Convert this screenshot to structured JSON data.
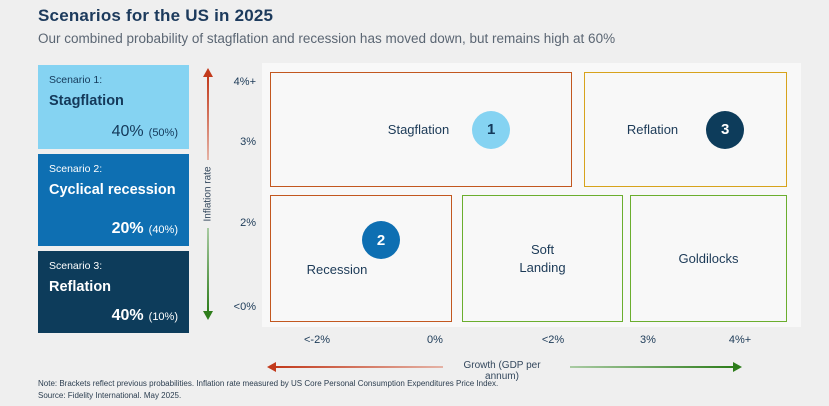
{
  "header": {
    "title": "Scenarios for the US in 2025",
    "subtitle": "Our combined probability of stagflation and recession has moved down, but remains high at 60%"
  },
  "scenarios": [
    {
      "label": "Scenario 1:",
      "name": "Stagflation",
      "current": "40%",
      "previous": "(50%)"
    },
    {
      "label": "Scenario 2:",
      "name": "Cyclical recession",
      "current": "20%",
      "previous": "(40%)"
    },
    {
      "label": "Scenario 3:",
      "name": "Reflation",
      "current": "40%",
      "previous": "(10%)"
    }
  ],
  "chart_data": {
    "type": "scatter",
    "title": "Scenarios for the US in 2025",
    "subtitle": "Our combined probability of stagflation and recession has moved down, but remains high at 60%",
    "xlabel": "Growth (GDP per annum)",
    "ylabel": "Inflation rate",
    "x_tick_labels": [
      "<-2%",
      "0%",
      "<2%",
      "3%",
      "4%+"
    ],
    "y_tick_labels": [
      "4%+",
      "3%",
      "2%",
      "<0%"
    ],
    "grid": false,
    "legend": "none",
    "regions": [
      {
        "label": "Stagflation",
        "marker": "1",
        "growth_range": [
          "<-2%",
          "<2%"
        ],
        "inflation_range": [
          "2%",
          "4%+"
        ],
        "border_color": "#c2571f",
        "marker_color": "#85d3f2"
      },
      {
        "label": "Reflation",
        "marker": "3",
        "growth_range": [
          "3%",
          "4%+"
        ],
        "inflation_range": [
          "2%",
          "4%+"
        ],
        "border_color": "#d7a31c",
        "marker_color": "#0d3c5b"
      },
      {
        "label": "Recession",
        "marker": "2",
        "growth_range": [
          "<-2%",
          "0%"
        ],
        "inflation_range": [
          "<0%",
          "2%"
        ],
        "border_color": "#c2571f",
        "marker_color": "#0e6fb2"
      },
      {
        "label": "Soft Landing",
        "marker": "",
        "growth_range": [
          "0%",
          "<2%"
        ],
        "inflation_range": [
          "<0%",
          "2%"
        ],
        "border_color": "#6bae2e",
        "marker_color": ""
      },
      {
        "label": "Goldilocks",
        "marker": "",
        "growth_range": [
          "<2%",
          "4%+"
        ],
        "inflation_range": [
          "<0%",
          "2%"
        ],
        "border_color": "#6bae2e",
        "marker_color": ""
      }
    ],
    "probabilities": [
      {
        "scenario": "Stagflation",
        "current_pct": 40,
        "previous_pct": 50
      },
      {
        "scenario": "Cyclical recession",
        "current_pct": 20,
        "previous_pct": 40
      },
      {
        "scenario": "Reflation",
        "current_pct": 40,
        "previous_pct": 10
      }
    ],
    "combined_stagflation_recession_probability_pct": 60
  },
  "colors": {
    "title_navy": "#1c3a5c",
    "subtitle_gray": "#5b6673",
    "light_blue": "#85d3f2",
    "mid_blue": "#0e6fb2",
    "dark_navy": "#0d3c5b",
    "orange_border": "#c2571f",
    "gold_border": "#d7a31c",
    "green_border": "#6bae2e",
    "red_arrow": "#c23a1c",
    "green_arrow": "#2e7d1b",
    "page_background": "#efefef",
    "plot_background": "#f8f8f8"
  },
  "footnote": {
    "note": "Note: Brackets reflect previous probabilities. Inflation rate measured by US Core Personal Consumption Expenditures Price Index.",
    "source": "Source: Fidelity International. May 2025."
  }
}
